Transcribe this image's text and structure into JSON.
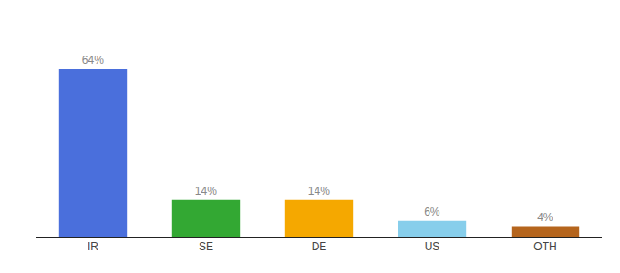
{
  "chart_data": {
    "type": "bar",
    "categories": [
      "IR",
      "SE",
      "DE",
      "US",
      "OTH"
    ],
    "values": [
      64,
      14,
      14,
      6,
      4
    ],
    "value_labels": [
      "64%",
      "14%",
      "14%",
      "6%",
      "4%"
    ],
    "data_labels": true,
    "colors": [
      "#4a6fdc",
      "#33a833",
      "#f5a800",
      "#87ceeb",
      "#b5651d"
    ],
    "ylim": [
      0,
      80
    ],
    "grid": false,
    "tick_labels": "x"
  }
}
